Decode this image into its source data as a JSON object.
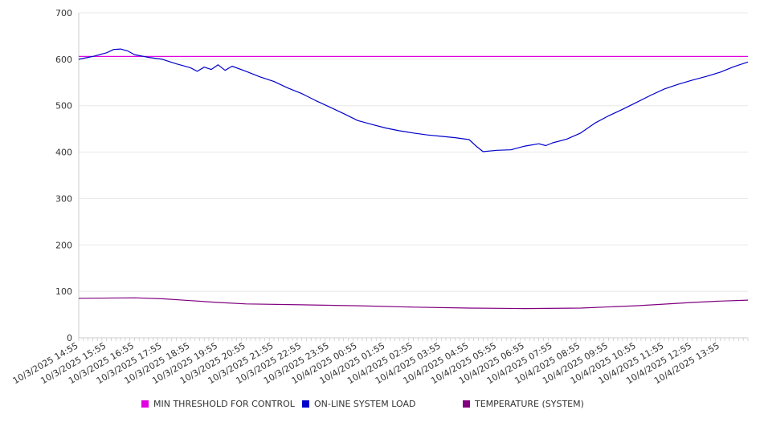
{
  "chart_data": {
    "type": "line",
    "title": "",
    "xlabel": "",
    "ylabel": "",
    "ylim": [
      0,
      700
    ],
    "yticks": [
      0,
      100,
      200,
      300,
      400,
      500,
      600,
      700
    ],
    "grid": true,
    "legend_position": "bottom",
    "x_range": [
      "10/3/2025 14:55",
      "10/4/2025 14:55"
    ],
    "x_ticks": [
      "10/3/2025 14:55",
      "10/3/2025 15:55",
      "10/3/2025 16:55",
      "10/3/2025 17:55",
      "10/3/2025 18:55",
      "10/3/2025 19:55",
      "10/3/2025 20:55",
      "10/3/2025 21:55",
      "10/3/2025 22:55",
      "10/3/2025 23:55",
      "10/4/2025 00:55",
      "10/4/2025 01:55",
      "10/4/2025 02:55",
      "10/4/2025 03:55",
      "10/4/2025 04:55",
      "10/4/2025 05:55",
      "10/4/2025 06:55",
      "10/4/2025 07:55",
      "10/4/2025 08:55",
      "10/4/2025 09:55",
      "10/4/2025 10:55",
      "10/4/2025 11:55",
      "10/4/2025 12:55",
      "10/4/2025 13:55"
    ],
    "series": [
      {
        "name": "MIN THRESHOLD FOR CONTROL",
        "color": "#e000e0",
        "points": [
          [
            "10/3/2025 14:55",
            606
          ],
          [
            "10/4/2025 14:55",
            606
          ]
        ]
      },
      {
        "name": "ON-LINE SYSTEM LOAD",
        "color": "#0000cc",
        "points": [
          [
            "10/3/2025 14:55",
            600
          ],
          [
            "10/3/2025 15:25",
            606
          ],
          [
            "10/3/2025 15:55",
            614
          ],
          [
            "10/3/2025 16:10",
            621
          ],
          [
            "10/3/2025 16:25",
            622
          ],
          [
            "10/3/2025 16:40",
            618
          ],
          [
            "10/3/2025 16:55",
            610
          ],
          [
            "10/3/2025 17:25",
            604
          ],
          [
            "10/3/2025 17:55",
            600
          ],
          [
            "10/3/2025 18:25",
            590
          ],
          [
            "10/3/2025 18:55",
            582
          ],
          [
            "10/3/2025 19:10",
            574
          ],
          [
            "10/3/2025 19:25",
            583
          ],
          [
            "10/3/2025 19:40",
            578
          ],
          [
            "10/3/2025 19:55",
            588
          ],
          [
            "10/3/2025 20:10",
            576
          ],
          [
            "10/3/2025 20:25",
            585
          ],
          [
            "10/3/2025 20:55",
            574
          ],
          [
            "10/3/2025 21:25",
            562
          ],
          [
            "10/3/2025 21:55",
            552
          ],
          [
            "10/3/2025 22:25",
            538
          ],
          [
            "10/3/2025 22:55",
            526
          ],
          [
            "10/3/2025 23:25",
            511
          ],
          [
            "10/3/2025 23:55",
            497
          ],
          [
            "10/4/2025 00:25",
            483
          ],
          [
            "10/4/2025 00:55",
            468
          ],
          [
            "10/4/2025 01:25",
            460
          ],
          [
            "10/4/2025 01:55",
            452
          ],
          [
            "10/4/2025 02:25",
            446
          ],
          [
            "10/4/2025 02:55",
            441
          ],
          [
            "10/4/2025 03:25",
            437
          ],
          [
            "10/4/2025 03:55",
            434
          ],
          [
            "10/4/2025 04:25",
            431
          ],
          [
            "10/4/2025 04:55",
            427
          ],
          [
            "10/4/2025 05:10",
            413
          ],
          [
            "10/4/2025 05:25",
            401
          ],
          [
            "10/4/2025 05:55",
            404
          ],
          [
            "10/4/2025 06:25",
            405
          ],
          [
            "10/4/2025 06:55",
            413
          ],
          [
            "10/4/2025 07:25",
            418
          ],
          [
            "10/4/2025 07:40",
            414
          ],
          [
            "10/4/2025 07:55",
            420
          ],
          [
            "10/4/2025 08:25",
            428
          ],
          [
            "10/4/2025 08:55",
            441
          ],
          [
            "10/4/2025 09:25",
            462
          ],
          [
            "10/4/2025 09:55",
            478
          ],
          [
            "10/4/2025 10:25",
            492
          ],
          [
            "10/4/2025 10:55",
            507
          ],
          [
            "10/4/2025 11:25",
            522
          ],
          [
            "10/4/2025 11:55",
            536
          ],
          [
            "10/4/2025 12:25",
            546
          ],
          [
            "10/4/2025 12:55",
            555
          ],
          [
            "10/4/2025 13:25",
            563
          ],
          [
            "10/4/2025 13:55",
            572
          ],
          [
            "10/4/2025 14:25",
            584
          ],
          [
            "10/4/2025 14:55",
            594
          ]
        ]
      },
      {
        "name": "TEMPERATURE (SYSTEM)",
        "color": "#800080",
        "points": [
          [
            "10/3/2025 14:55",
            85
          ],
          [
            "10/3/2025 16:55",
            86
          ],
          [
            "10/3/2025 17:55",
            84
          ],
          [
            "10/3/2025 18:55",
            80
          ],
          [
            "10/3/2025 19:55",
            76
          ],
          [
            "10/3/2025 20:55",
            73
          ],
          [
            "10/3/2025 22:55",
            71
          ],
          [
            "10/4/2025 00:55",
            69
          ],
          [
            "10/4/2025 02:55",
            66
          ],
          [
            "10/4/2025 04:55",
            64
          ],
          [
            "10/4/2025 06:55",
            63
          ],
          [
            "10/4/2025 08:55",
            64
          ],
          [
            "10/4/2025 10:55",
            69
          ],
          [
            "10/4/2025 12:55",
            76
          ],
          [
            "10/4/2025 13:55",
            79
          ],
          [
            "10/4/2025 14:55",
            81
          ]
        ]
      }
    ]
  },
  "legend": {
    "items": [
      {
        "label": "MIN THRESHOLD FOR CONTROL",
        "color": "#e000e0"
      },
      {
        "label": "ON-LINE SYSTEM LOAD",
        "color": "#0000cc"
      },
      {
        "label": "TEMPERATURE (SYSTEM)",
        "color": "#800080"
      }
    ]
  }
}
